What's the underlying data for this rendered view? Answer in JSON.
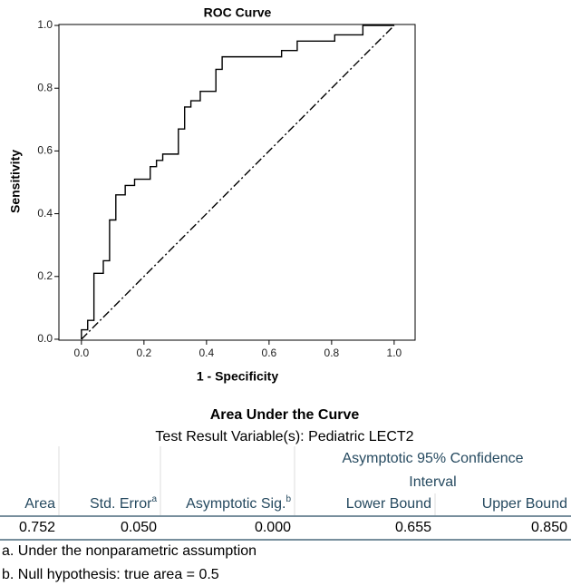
{
  "chart_data": {
    "type": "line",
    "title": "ROC Curve",
    "x_label": "1 - Specificity",
    "y_label": "Sensitivity",
    "series": [
      {
        "color": "#000000",
        "style": "solid",
        "x": [
          0,
          0,
          0.02,
          0.02,
          0.04,
          0.04,
          0.07,
          0.07,
          0.09,
          0.09,
          0.11,
          0.11,
          0.14,
          0.14,
          0.17,
          0.17,
          0.22,
          0.22,
          0.24,
          0.24,
          0.26,
          0.26,
          0.31,
          0.31,
          0.33,
          0.33,
          0.35,
          0.35,
          0.38,
          0.38,
          0.43,
          0.43,
          0.45,
          0.45,
          0.64,
          0.64,
          0.69,
          0.69,
          0.81,
          0.81,
          0.9,
          0.9,
          1.0
        ],
        "y": [
          0,
          0.03,
          0.03,
          0.06,
          0.06,
          0.21,
          0.21,
          0.25,
          0.25,
          0.38,
          0.38,
          0.46,
          0.46,
          0.49,
          0.49,
          0.51,
          0.51,
          0.55,
          0.55,
          0.57,
          0.57,
          0.59,
          0.59,
          0.67,
          0.67,
          0.74,
          0.74,
          0.76,
          0.76,
          0.79,
          0.79,
          0.86,
          0.86,
          0.9,
          0.9,
          0.92,
          0.92,
          0.95,
          0.95,
          0.97,
          0.97,
          1.0,
          1.0
        ]
      },
      {
        "color": "#000000",
        "style": "dash-dot",
        "x": [
          0,
          1
        ],
        "y": [
          0,
          1
        ]
      }
    ],
    "xlim": [
      -0.072,
      1.067
    ],
    "ylim": [
      -0.003,
      1.003
    ],
    "xticks": [
      {
        "value": 0,
        "label": "0.0"
      },
      0.2,
      0.4,
      0.6,
      0.8,
      {
        "value": 1,
        "label": "1.0"
      }
    ],
    "yticks": [
      {
        "value": 0,
        "label": "0.0"
      },
      0.2,
      0.4,
      0.6,
      0.8,
      {
        "value": 1,
        "label": "1.0"
      }
    ]
  },
  "table": {
    "title": "Area Under the Curve",
    "subtitle": "Test Result Variable(s):   Pediatric LECT2",
    "group_header": "Asymptotic 95% Confidence Interval",
    "headers": [
      [
        "Area"
      ],
      [
        "Std. Error",
        "a"
      ],
      [
        "Asymptotic Sig.",
        "b"
      ],
      [
        "Lower Bound"
      ],
      [
        "Upper Bound"
      ]
    ],
    "rows": [
      [
        "0.752",
        "0.050",
        "0.000",
        "0.655",
        "0.850"
      ]
    ],
    "footnotes": [
      "a. Under the nonparametric assumption",
      "b. Null hypothesis: true area = 0.5"
    ]
  }
}
